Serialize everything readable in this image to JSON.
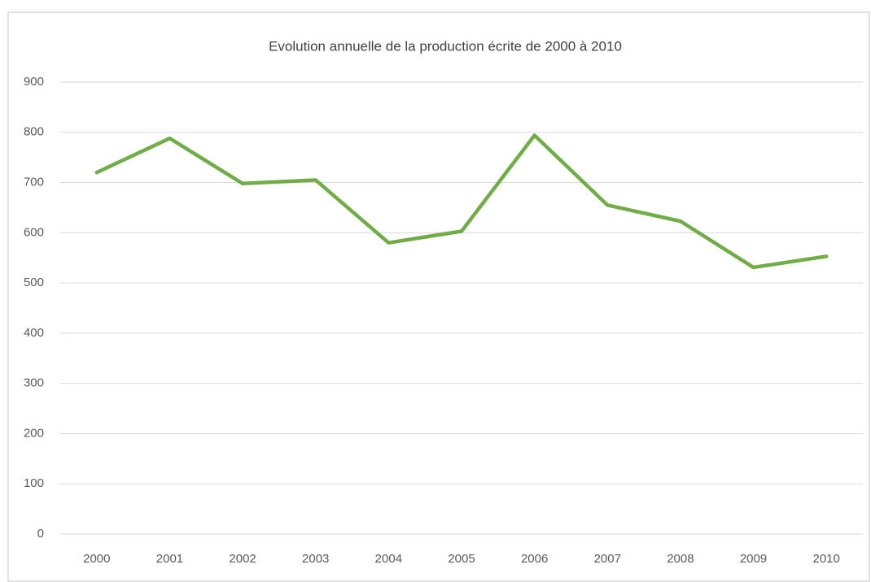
{
  "chart_data": {
    "type": "line",
    "title": "Evolution annuelle de la production écrite de 2000 à 2010",
    "categories": [
      "2000",
      "2001",
      "2002",
      "2003",
      "2004",
      "2005",
      "2006",
      "2007",
      "2008",
      "2009",
      "2010"
    ],
    "series": [
      {
        "name": "Production écrite",
        "color": "#70ad47",
        "values": [
          720,
          788,
          698,
          705,
          580,
          603,
          794,
          655,
          623,
          531,
          553
        ]
      }
    ],
    "ylim": [
      0,
      900
    ],
    "yticks": [
      0,
      100,
      200,
      300,
      400,
      500,
      600,
      700,
      800,
      900
    ],
    "grid": true
  }
}
